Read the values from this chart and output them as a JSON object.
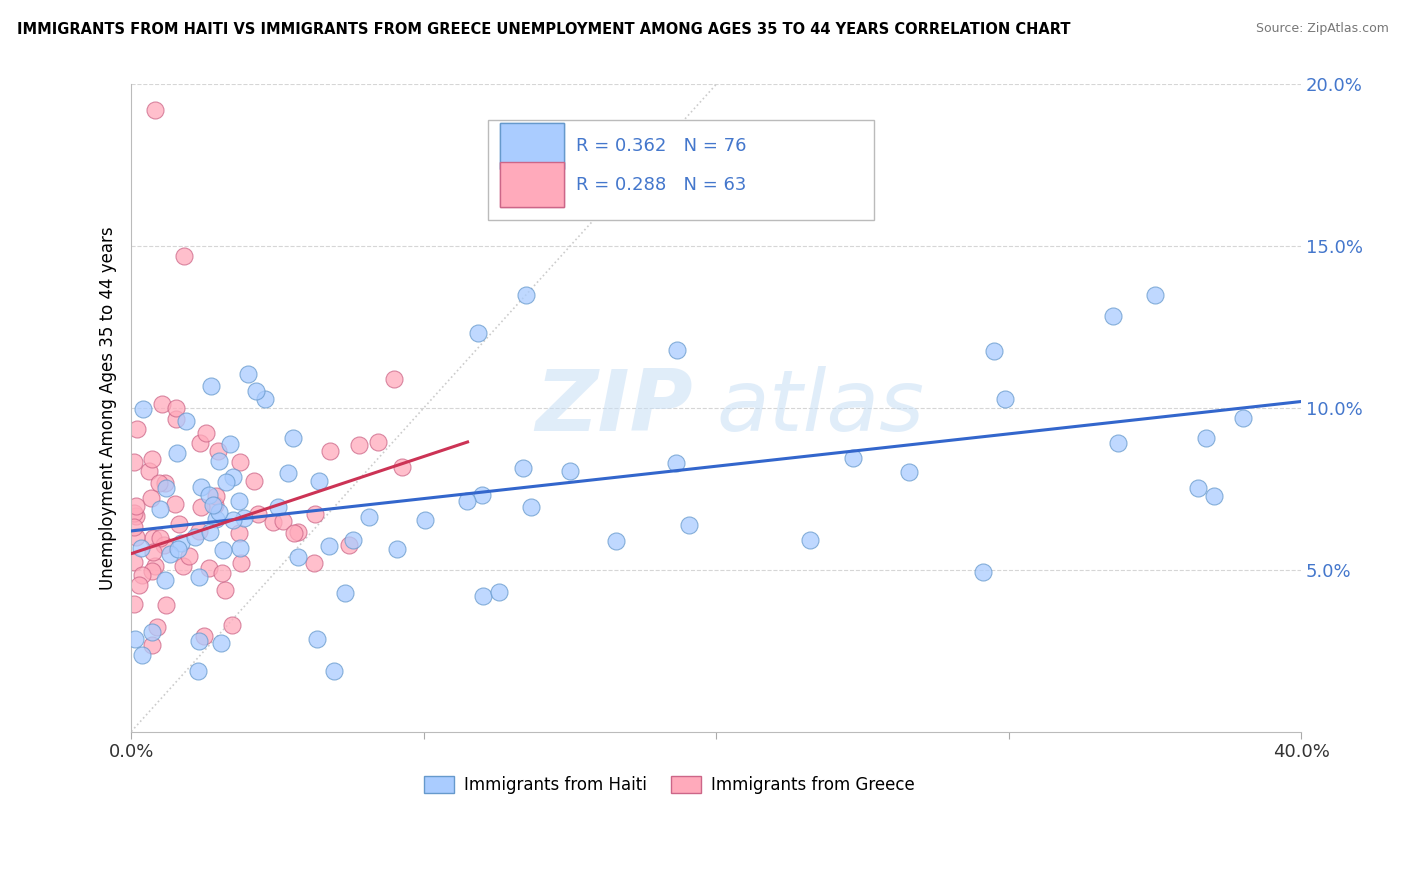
{
  "title": "IMMIGRANTS FROM HAITI VS IMMIGRANTS FROM GREECE UNEMPLOYMENT AMONG AGES 35 TO 44 YEARS CORRELATION CHART",
  "source": "Source: ZipAtlas.com",
  "ylabel": "Unemployment Among Ages 35 to 44 years",
  "xlim": [
    0.0,
    0.4
  ],
  "ylim": [
    0.0,
    0.2
  ],
  "haiti_color": "#aaccff",
  "greece_color": "#ffaabb",
  "haiti_edge": "#6699cc",
  "greece_edge": "#cc6688",
  "trend_haiti_color": "#3366cc",
  "trend_greece_color": "#cc3355",
  "ref_line_color": "#cccccc",
  "R_haiti": 0.362,
  "N_haiti": 76,
  "R_greece": 0.288,
  "N_greece": 63,
  "watermark_color": "#c8dff5",
  "ytick_color": "#4477cc",
  "xtick_color": "#333333",
  "grid_color": "#cccccc",
  "legend_text_color": "#4477cc"
}
